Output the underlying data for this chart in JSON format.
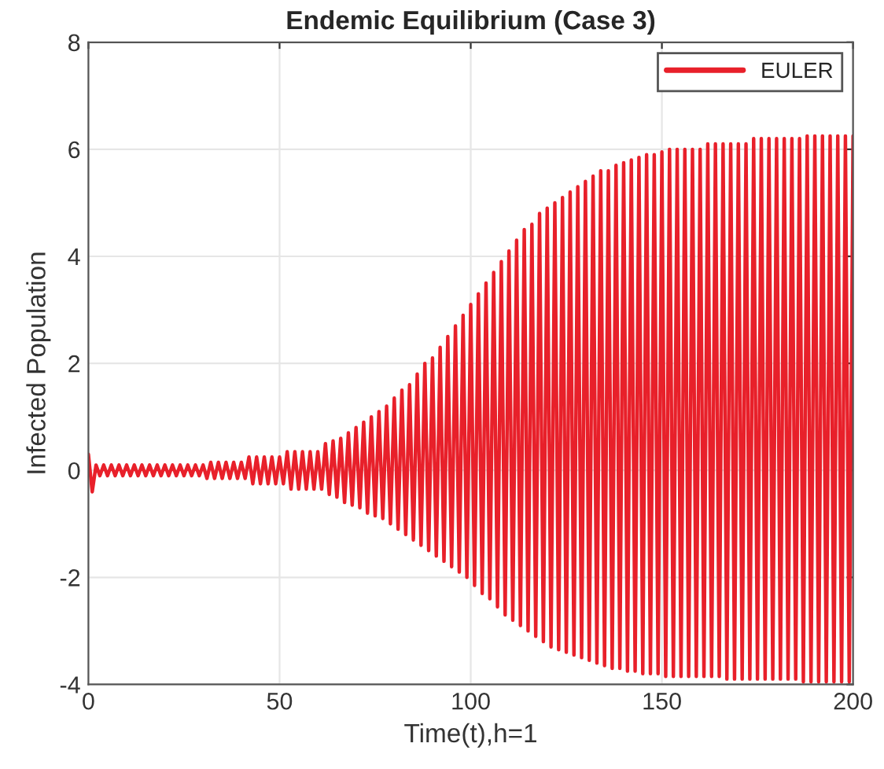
{
  "chart_data": {
    "type": "line",
    "title": "Endemic Equilibrium (Case 3)",
    "xlabel": "Time(t),h=1",
    "ylabel": "Infected Population",
    "xlim": [
      0,
      200
    ],
    "xticks": [
      0,
      50,
      100,
      150,
      200
    ],
    "ylim": [
      -4,
      8
    ],
    "yticks": [
      -4,
      -2,
      0,
      2,
      4,
      6,
      8
    ],
    "grid": true,
    "legend": "top right",
    "x": [
      0,
      1,
      2,
      3,
      4,
      5,
      6,
      7,
      8,
      9,
      10,
      11,
      12,
      13,
      14,
      15,
      16,
      17,
      18,
      19,
      20,
      21,
      22,
      23,
      24,
      25,
      26,
      27,
      28,
      29,
      30,
      31,
      32,
      33,
      34,
      35,
      36,
      37,
      38,
      39,
      40,
      41,
      42,
      43,
      44,
      45,
      46,
      47,
      48,
      49,
      50,
      51,
      52,
      53,
      54,
      55,
      56,
      57,
      58,
      59,
      60,
      61,
      62,
      63,
      64,
      65,
      66,
      67,
      68,
      69,
      70,
      71,
      72,
      73,
      74,
      75,
      76,
      77,
      78,
      79,
      80,
      81,
      82,
      83,
      84,
      85,
      86,
      87,
      88,
      89,
      90,
      91,
      92,
      93,
      94,
      95,
      96,
      97,
      98,
      99,
      100,
      101,
      102,
      103,
      104,
      105,
      106,
      107,
      108,
      109,
      110,
      111,
      112,
      113,
      114,
      115,
      116,
      117,
      118,
      119,
      120,
      121,
      122,
      123,
      124,
      125,
      126,
      127,
      128,
      129,
      130,
      131,
      132,
      133,
      134,
      135,
      136,
      137,
      138,
      139,
      140,
      141,
      142,
      143,
      144,
      145,
      146,
      147,
      148,
      149,
      150,
      151,
      152,
      153,
      154,
      155,
      156,
      157,
      158,
      159,
      160,
      161,
      162,
      163,
      164,
      165,
      166,
      167,
      168,
      169,
      170,
      171,
      172,
      173,
      174,
      175,
      176,
      177,
      178,
      179,
      180,
      181,
      182,
      183,
      184,
      185,
      186,
      187,
      188,
      189,
      190,
      191,
      192,
      193,
      194,
      195,
      196,
      197,
      198,
      199,
      200
    ],
    "series": [
      {
        "name": "EULER",
        "color": "#e8202a",
        "values": [
          0.3,
          -0.4,
          0.1,
          -0.1,
          0.1,
          -0.1,
          0.1,
          -0.1,
          0.1,
          -0.1,
          0.1,
          -0.1,
          0.1,
          -0.1,
          0.1,
          -0.1,
          0.1,
          -0.1,
          0.1,
          -0.1,
          0.1,
          -0.1,
          0.1,
          -0.1,
          0.1,
          -0.1,
          0.1,
          -0.1,
          0.1,
          -0.1,
          0.1,
          -0.15,
          0.15,
          -0.15,
          0.15,
          -0.15,
          0.15,
          -0.15,
          0.15,
          -0.15,
          0.15,
          -0.15,
          0.25,
          -0.25,
          0.25,
          -0.25,
          0.25,
          -0.25,
          0.25,
          -0.25,
          0.25,
          -0.25,
          0.35,
          -0.35,
          0.35,
          -0.35,
          0.35,
          -0.35,
          0.35,
          -0.35,
          0.35,
          -0.35,
          0.5,
          -0.45,
          0.55,
          -0.5,
          0.6,
          -0.6,
          0.7,
          -0.65,
          0.8,
          -0.7,
          0.9,
          -0.8,
          1.0,
          -0.85,
          1.1,
          -0.9,
          1.2,
          -1.0,
          1.35,
          -1.1,
          1.5,
          -1.2,
          1.6,
          -1.3,
          1.8,
          -1.4,
          2.0,
          -1.5,
          2.1,
          -1.6,
          2.3,
          -1.7,
          2.5,
          -1.8,
          2.7,
          -1.9,
          2.9,
          -2.0,
          3.1,
          -2.15,
          3.3,
          -2.3,
          3.5,
          -2.4,
          3.7,
          -2.55,
          3.9,
          -2.7,
          4.1,
          -2.8,
          4.3,
          -2.9,
          4.5,
          -3.0,
          4.6,
          -3.1,
          4.8,
          -3.2,
          4.9,
          -3.3,
          5.0,
          -3.35,
          5.1,
          -3.4,
          5.2,
          -3.45,
          5.3,
          -3.5,
          5.4,
          -3.55,
          5.5,
          -3.6,
          5.6,
          -3.65,
          5.6,
          -3.7,
          5.7,
          -3.7,
          5.75,
          -3.75,
          5.8,
          -3.75,
          5.85,
          -3.8,
          5.9,
          -3.8,
          5.9,
          -3.8,
          5.95,
          -3.85,
          6.0,
          -3.85,
          6.0,
          -3.85,
          6.0,
          -3.85,
          6.0,
          -3.85,
          6.0,
          -3.85,
          6.1,
          -3.85,
          6.1,
          -3.85,
          6.1,
          -3.9,
          6.1,
          -3.9,
          6.1,
          -3.9,
          6.1,
          -3.9,
          6.2,
          -3.9,
          6.2,
          -3.9,
          6.2,
          -3.9,
          6.2,
          -3.9,
          6.2,
          -3.9,
          6.2,
          -3.9,
          6.2,
          -3.95,
          6.25,
          -3.95,
          6.25,
          -3.95,
          6.25,
          -3.95,
          6.25,
          -3.95,
          6.25,
          -3.95,
          6.25,
          -3.95,
          6.25
        ]
      }
    ]
  }
}
